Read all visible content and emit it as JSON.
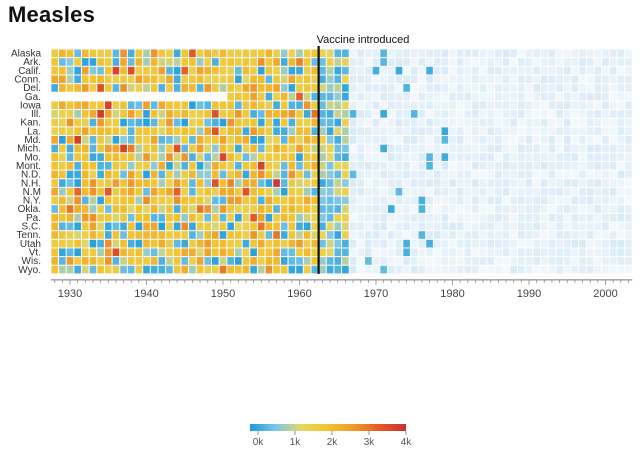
{
  "chart_data": {
    "type": "heatmap",
    "title": "Measles",
    "x_range": [
      1928,
      2003
    ],
    "x_ticks": [
      "1930",
      "1940",
      "1950",
      "1960",
      "1970",
      "1980",
      "1990",
      "2000"
    ],
    "y_labels": [
      "Alaska",
      "Ark.",
      "Calif.",
      "Conn.",
      "Del.",
      "Ga.",
      "Iowa",
      "Ill.",
      "Kan.",
      "La.",
      "Md.",
      "Mich.",
      "Mo.",
      "Mont.",
      "N.D.",
      "N.H.",
      "N.M",
      "N.Y.",
      "Okla.",
      "Pa.",
      "S.C.",
      "Tenn.",
      "Utah",
      "Vt.",
      "Wis.",
      "Wyo."
    ],
    "annotation": {
      "year": 1963,
      "text": "Vaccine introduced"
    },
    "legend": {
      "ticks": [
        "0k",
        "1k",
        "2k",
        "3k",
        "4k"
      ],
      "stops": [
        "#1a9bd7",
        "#7ec8e8",
        "#e8d65e",
        "#f2c230",
        "#f09a2a",
        "#e35a27",
        "#c9302c"
      ]
    },
    "grid": false
  }
}
